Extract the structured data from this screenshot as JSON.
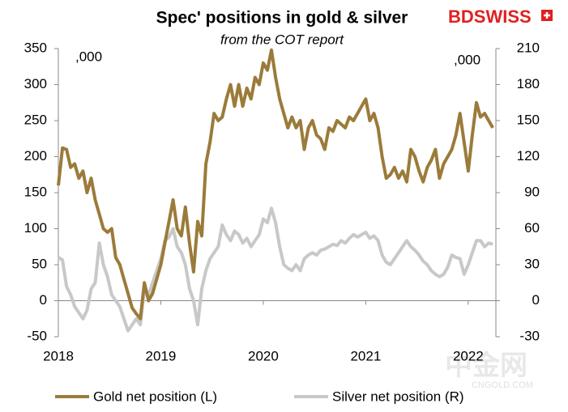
{
  "chart_data": {
    "type": "line",
    "title": "Spec' positions in gold & silver",
    "subtitle": "from the COT report",
    "logo": "BDSWISS",
    "left_unit": ",000",
    "right_unit": ",000",
    "watermark": [
      "中金网",
      "CNGOLD.COM"
    ],
    "x": [
      2018,
      2018.04,
      2018.08,
      2018.12,
      2018.16,
      2018.2,
      2018.24,
      2018.28,
      2018.32,
      2018.36,
      2018.4,
      2018.44,
      2018.48,
      2018.52,
      2018.56,
      2018.6,
      2018.64,
      2018.68,
      2018.72,
      2018.76,
      2018.8,
      2018.84,
      2018.88,
      2018.92,
      2018.96,
      2019,
      2019.04,
      2019.08,
      2019.12,
      2019.16,
      2019.2,
      2019.24,
      2019.28,
      2019.32,
      2019.36,
      2019.4,
      2019.44,
      2019.48,
      2019.52,
      2019.56,
      2019.6,
      2019.64,
      2019.68,
      2019.72,
      2019.76,
      2019.8,
      2019.84,
      2019.88,
      2019.92,
      2019.96,
      2020,
      2020.04,
      2020.08,
      2020.12,
      2020.16,
      2020.2,
      2020.24,
      2020.28,
      2020.32,
      2020.36,
      2020.4,
      2020.44,
      2020.48,
      2020.52,
      2020.56,
      2020.6,
      2020.64,
      2020.68,
      2020.72,
      2020.76,
      2020.8,
      2020.84,
      2020.88,
      2020.92,
      2020.96,
      2021,
      2021.04,
      2021.08,
      2021.12,
      2021.16,
      2021.2,
      2021.24,
      2021.28,
      2021.32,
      2021.36,
      2021.4,
      2021.44,
      2021.48,
      2021.52,
      2021.56,
      2021.6,
      2021.64,
      2021.68,
      2021.72,
      2021.76,
      2021.8,
      2021.84,
      2021.88,
      2021.92,
      2021.96,
      2022,
      2022.04,
      2022.08,
      2022.12,
      2022.16,
      2022.2,
      2022.24
    ],
    "series": [
      {
        "name": "Gold net position (L)",
        "color": "#9b7b3a",
        "axis": "y",
        "values": [
          160,
          212,
          210,
          185,
          190,
          170,
          180,
          150,
          170,
          140,
          120,
          100,
          95,
          100,
          60,
          50,
          30,
          10,
          -10,
          -18,
          -25,
          25,
          0,
          10,
          30,
          50,
          80,
          110,
          140,
          100,
          90,
          130,
          80,
          40,
          110,
          90,
          190,
          220,
          260,
          250,
          255,
          280,
          300,
          270,
          300,
          270,
          295,
          280,
          310,
          300,
          330,
          320,
          348,
          310,
          280,
          260,
          240,
          255,
          240,
          250,
          210,
          240,
          250,
          230,
          225,
          210,
          240,
          235,
          250,
          245,
          240,
          255,
          250,
          260,
          270,
          280,
          250,
          260,
          240,
          200,
          170,
          175,
          185,
          170,
          180,
          165,
          210,
          200,
          180,
          165,
          185,
          195,
          210,
          170,
          190,
          200,
          210,
          230,
          260,
          220,
          180,
          230,
          275,
          255,
          260,
          250,
          240
        ]
      },
      {
        "name": "Silver net position (R)",
        "color": "#c8c8c8",
        "axis": "y2",
        "values": [
          36,
          34,
          12,
          5,
          -5,
          -10,
          -15,
          -8,
          10,
          15,
          48,
          30,
          20,
          5,
          0,
          -5,
          -15,
          -25,
          -20,
          -15,
          -20,
          10,
          5,
          15,
          25,
          35,
          50,
          53,
          60,
          45,
          40,
          30,
          10,
          0,
          -20,
          10,
          25,
          35,
          40,
          45,
          63,
          55,
          50,
          58,
          55,
          48,
          52,
          45,
          50,
          55,
          68,
          65,
          77,
          65,
          45,
          30,
          27,
          25,
          30,
          25,
          35,
          38,
          40,
          38,
          42,
          43,
          45,
          47,
          46,
          50,
          48,
          52,
          55,
          53,
          55,
          57,
          52,
          54,
          50,
          38,
          32,
          30,
          35,
          40,
          45,
          50,
          45,
          42,
          38,
          33,
          30,
          25,
          22,
          20,
          22,
          28,
          38,
          36,
          35,
          22,
          30,
          40,
          50,
          50,
          45,
          48,
          47
        ]
      }
    ],
    "xlim": [
      2018,
      2022.27
    ],
    "xticks": [
      2018,
      2019,
      2020,
      2021,
      2022
    ],
    "ylim": [
      -50,
      350
    ],
    "yticks": [
      -50,
      0,
      50,
      100,
      150,
      200,
      250,
      300,
      350
    ],
    "y2lim": [
      -30,
      210
    ],
    "y2ticks": [
      -30,
      0,
      30,
      60,
      90,
      120,
      150,
      180,
      210
    ]
  }
}
